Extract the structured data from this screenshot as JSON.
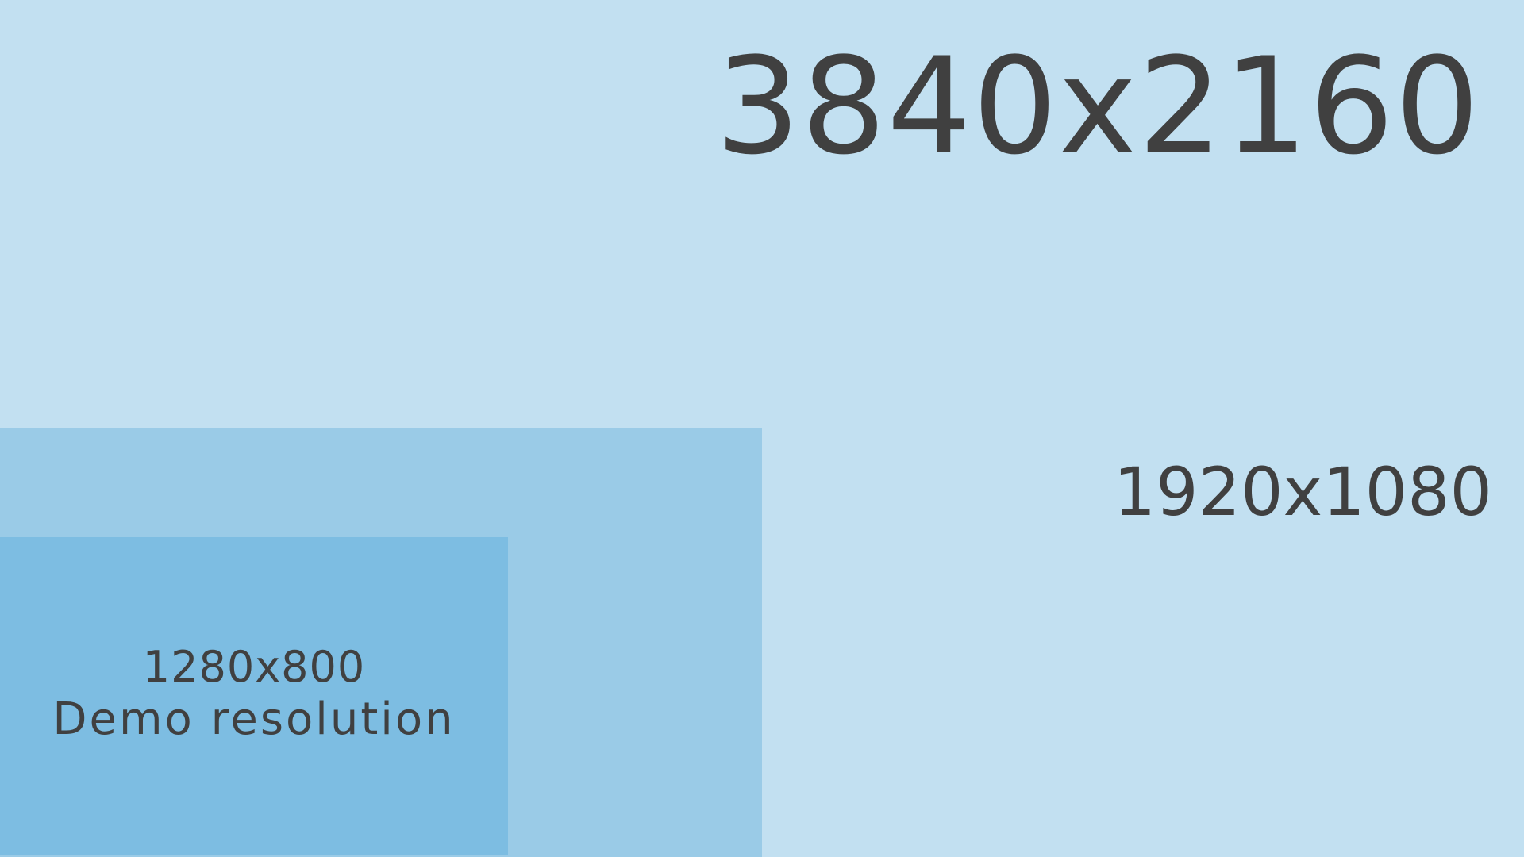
{
  "colors": {
    "outer_panel": "#c2e0f1",
    "middle_panel": "#9acbe7",
    "inner_panel": "#7dbde2",
    "text": "#404040"
  },
  "panels": {
    "uhd": {
      "label": "3840x2160"
    },
    "fhd": {
      "label": "1920x1080"
    },
    "demo": {
      "label": "1280x800",
      "caption": "Demo resolution"
    }
  }
}
